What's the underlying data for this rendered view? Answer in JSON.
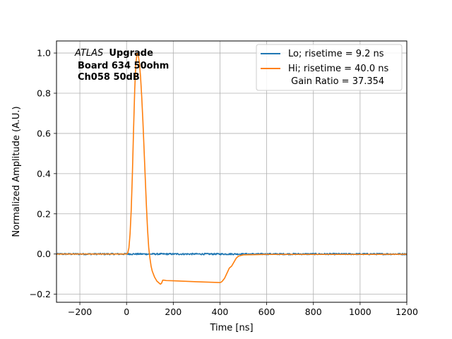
{
  "chart_data": {
    "type": "line",
    "xlabel": "Time [ns]",
    "ylabel": "Normalized Amplitude (A.U.)",
    "xlim": [
      -300,
      1200
    ],
    "ylim": [
      -0.24,
      1.06
    ],
    "xticks": [
      -200,
      0,
      200,
      400,
      600,
      800,
      1000,
      1200
    ],
    "yticks": [
      -0.2,
      0.0,
      0.2,
      0.4,
      0.6,
      0.8,
      1.0
    ],
    "xtick_labels": [
      "−200",
      "0",
      "200",
      "400",
      "600",
      "800",
      "1000",
      "1200"
    ],
    "ytick_labels": [
      "−0.2",
      "0.0",
      "0.2",
      "0.4",
      "0.6",
      "0.8",
      "1.0"
    ],
    "grid": true,
    "legend_position": "top-right",
    "annotation": {
      "line1_italic": "ATLAS",
      "line1_bold": "Upgrade",
      "line2": "Board 634 50ohm",
      "line3": "Ch058 50dB"
    },
    "series": [
      {
        "name": "Lo; risetime = 9.2 ns",
        "color": "#1f77b4",
        "x": [
          -300,
          0,
          20,
          50,
          100,
          200,
          400,
          600,
          800,
          1000,
          1200
        ],
        "y": [
          0.0,
          0.0,
          0.0,
          0.0,
          0.0,
          0.0,
          0.0,
          0.0,
          0.0,
          0.0,
          0.0
        ],
        "noisy": true
      },
      {
        "name": "Hi; risetime = 40.0 ns",
        "name_line2": " Gain Ratio = 37.354",
        "color": "#ff7f0e",
        "x": [
          -300,
          -50,
          0,
          5,
          10,
          15,
          20,
          25,
          30,
          35,
          40,
          45,
          50,
          55,
          60,
          65,
          70,
          75,
          80,
          85,
          90,
          95,
          100,
          105,
          110,
          115,
          120,
          125,
          130,
          135,
          140,
          145,
          150,
          155,
          160,
          170,
          200,
          300,
          400,
          405,
          410,
          420,
          430,
          440,
          450,
          460,
          470,
          480,
          500,
          550,
          600,
          800,
          1000,
          1200
        ],
        "y": [
          0.0,
          0.0,
          0.0,
          0.005,
          0.03,
          0.1,
          0.22,
          0.4,
          0.62,
          0.82,
          0.95,
          1.0,
          0.99,
          0.95,
          0.88,
          0.78,
          0.66,
          0.52,
          0.38,
          0.24,
          0.12,
          0.03,
          -0.02,
          -0.06,
          -0.085,
          -0.1,
          -0.115,
          -0.125,
          -0.135,
          -0.14,
          -0.145,
          -0.15,
          -0.145,
          -0.13,
          -0.13,
          -0.132,
          -0.133,
          -0.138,
          -0.142,
          -0.14,
          -0.135,
          -0.12,
          -0.095,
          -0.07,
          -0.06,
          -0.04,
          -0.02,
          -0.01,
          -0.004,
          -0.003,
          -0.002,
          -0.002,
          -0.002,
          -0.001
        ]
      }
    ]
  }
}
